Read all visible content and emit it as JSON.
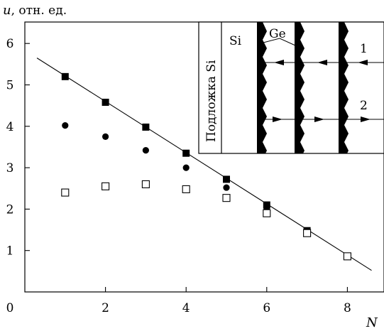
{
  "chart_data": {
    "type": "scatter",
    "ylabel_var": "u",
    "ylabel_unit": ", отн. ед.",
    "xlabel": "N",
    "xlim": [
      0,
      9
    ],
    "ylim": [
      0,
      6.5
    ],
    "x_ticks": [
      0,
      2,
      4,
      6,
      8
    ],
    "y_ticks": [
      1,
      2,
      3,
      4,
      5,
      6
    ],
    "grid": false,
    "series": [
      {
        "marker": "filled-square",
        "x": [
          1,
          2,
          3,
          4,
          5,
          6,
          7,
          8
        ],
        "y": [
          5.2,
          4.58,
          3.98,
          3.35,
          2.72,
          2.1,
          1.48,
          0.86
        ]
      },
      {
        "marker": "filled-circle",
        "x": [
          1,
          2,
          3,
          4,
          5,
          6
        ],
        "y": [
          4.02,
          3.75,
          3.42,
          3.0,
          2.52,
          2.02
        ]
      },
      {
        "marker": "open-square",
        "x": [
          1,
          2,
          3,
          4,
          5,
          6,
          7,
          8
        ],
        "y": [
          2.4,
          2.55,
          2.6,
          2.48,
          2.27,
          1.9,
          1.42,
          0.86
        ]
      }
    ],
    "fit_line": {
      "x": [
        0.3,
        8.6
      ],
      "y": [
        5.65,
        0.52
      ]
    },
    "inset": {
      "substrate_label": "Подложка Si",
      "si_label": "Si",
      "ge_label": "Ge",
      "ray_labels": [
        "1",
        "2"
      ]
    }
  }
}
